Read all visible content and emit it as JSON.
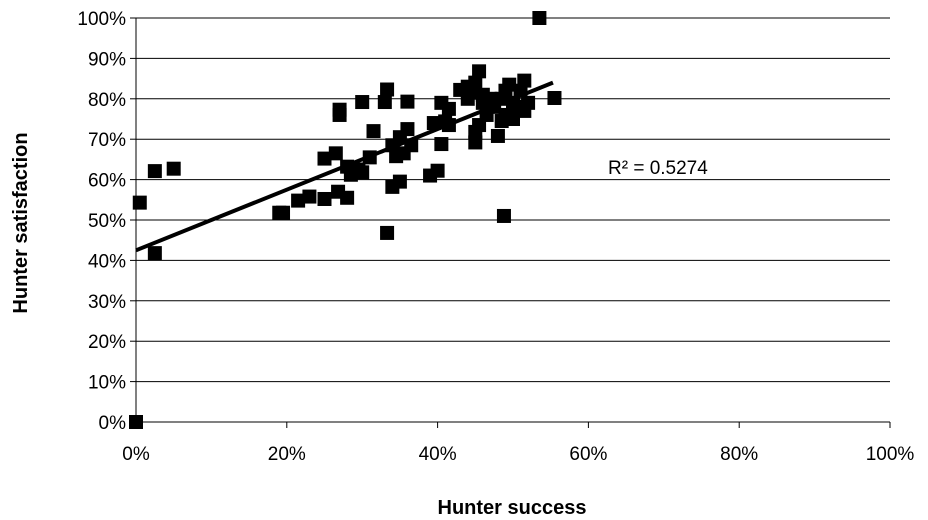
{
  "chart_data": {
    "type": "scatter",
    "title": "",
    "xlabel": "Hunter success",
    "ylabel": "Hunter satisfaction",
    "xlim": [
      0,
      1
    ],
    "ylim": [
      0,
      1
    ],
    "x_ticks": [
      "0%",
      "20%",
      "40%",
      "60%",
      "80%",
      "100%"
    ],
    "y_ticks": [
      "0%",
      "10%",
      "20%",
      "30%",
      "40%",
      "50%",
      "60%",
      "70%",
      "80%",
      "90%",
      "100%"
    ],
    "grid": "horizontal",
    "legend": "none",
    "marker": "square",
    "marker_color": "#000000",
    "trendline": {
      "type": "linear",
      "x": [
        0.0,
        0.553
      ],
      "y": [
        0.425,
        0.84
      ],
      "color": "#000000"
    },
    "annotation": "R² = 0.5274",
    "points": [
      [
        0.0,
        0.0
      ],
      [
        0.0,
        0.0
      ],
      [
        0.005,
        0.543
      ],
      [
        0.025,
        0.621
      ],
      [
        0.025,
        0.418
      ],
      [
        0.05,
        0.627
      ],
      [
        0.19,
        0.518
      ],
      [
        0.195,
        0.518
      ],
      [
        0.215,
        0.548
      ],
      [
        0.23,
        0.558
      ],
      [
        0.25,
        0.552
      ],
      [
        0.25,
        0.652
      ],
      [
        0.265,
        0.665
      ],
      [
        0.268,
        0.57
      ],
      [
        0.27,
        0.76
      ],
      [
        0.27,
        0.773
      ],
      [
        0.28,
        0.632
      ],
      [
        0.28,
        0.555
      ],
      [
        0.285,
        0.612
      ],
      [
        0.295,
        0.625
      ],
      [
        0.3,
        0.792
      ],
      [
        0.3,
        0.618
      ],
      [
        0.31,
        0.655
      ],
      [
        0.315,
        0.72
      ],
      [
        0.33,
        0.792
      ],
      [
        0.333,
        0.823
      ],
      [
        0.333,
        0.468
      ],
      [
        0.34,
        0.582
      ],
      [
        0.34,
        0.685
      ],
      [
        0.345,
        0.658
      ],
      [
        0.35,
        0.595
      ],
      [
        0.35,
        0.705
      ],
      [
        0.355,
        0.665
      ],
      [
        0.36,
        0.793
      ],
      [
        0.36,
        0.725
      ],
      [
        0.365,
        0.685
      ],
      [
        0.39,
        0.61
      ],
      [
        0.395,
        0.74
      ],
      [
        0.4,
        0.622
      ],
      [
        0.405,
        0.688
      ],
      [
        0.405,
        0.79
      ],
      [
        0.41,
        0.744
      ],
      [
        0.415,
        0.735
      ],
      [
        0.415,
        0.775
      ],
      [
        0.43,
        0.822
      ],
      [
        0.44,
        0.8
      ],
      [
        0.44,
        0.83
      ],
      [
        0.445,
        0.815
      ],
      [
        0.45,
        0.692
      ],
      [
        0.45,
        0.718
      ],
      [
        0.45,
        0.84
      ],
      [
        0.455,
        0.735
      ],
      [
        0.455,
        0.868
      ],
      [
        0.46,
        0.81
      ],
      [
        0.46,
        0.79
      ],
      [
        0.465,
        0.76
      ],
      [
        0.47,
        0.8
      ],
      [
        0.475,
        0.78
      ],
      [
        0.48,
        0.708
      ],
      [
        0.485,
        0.745
      ],
      [
        0.485,
        0.8
      ],
      [
        0.488,
        0.51
      ],
      [
        0.49,
        0.82
      ],
      [
        0.49,
        0.76
      ],
      [
        0.495,
        0.835
      ],
      [
        0.5,
        0.75
      ],
      [
        0.5,
        0.79
      ],
      [
        0.505,
        0.78
      ],
      [
        0.51,
        0.82
      ],
      [
        0.515,
        0.845
      ],
      [
        0.515,
        0.77
      ],
      [
        0.52,
        0.79
      ],
      [
        0.535,
        1.0
      ],
      [
        0.555,
        0.802
      ]
    ]
  }
}
